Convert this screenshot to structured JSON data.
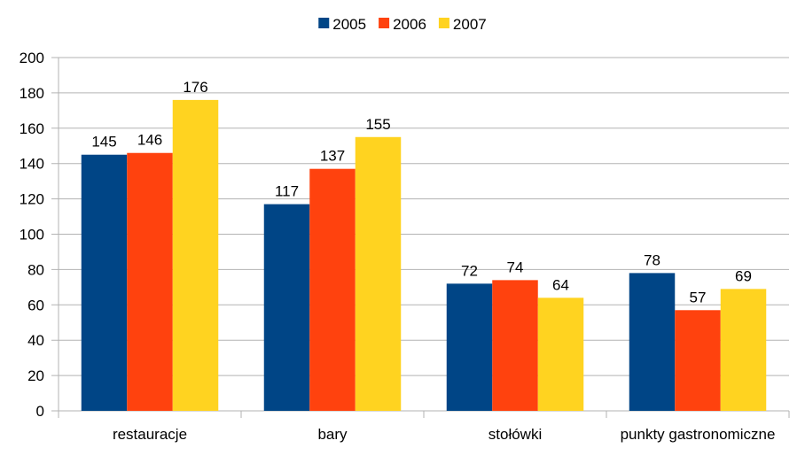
{
  "chart_data": {
    "type": "bar",
    "title": "",
    "xlabel": "",
    "ylabel": "",
    "categories": [
      "restauracje",
      "bary",
      "stołówki",
      "punkty gastronomiczne"
    ],
    "series": [
      {
        "name": "2005",
        "values": [
          145,
          117,
          72,
          78
        ],
        "color": "#004586"
      },
      {
        "name": "2006",
        "values": [
          146,
          137,
          74,
          57
        ],
        "color": "#ff420e"
      },
      {
        "name": "2007",
        "values": [
          176,
          155,
          64,
          69
        ],
        "color": "#ffd320"
      }
    ],
    "ylim": [
      0,
      200
    ],
    "yticks": [
      0,
      20,
      40,
      60,
      80,
      100,
      120,
      140,
      160,
      180,
      200
    ],
    "grid": true,
    "legend_position": "top-center",
    "data_labels": true,
    "colors": {
      "grid": "#b3b3b3",
      "axis": "#b3b3b3",
      "text": "#000000",
      "background": "#ffffff"
    }
  }
}
